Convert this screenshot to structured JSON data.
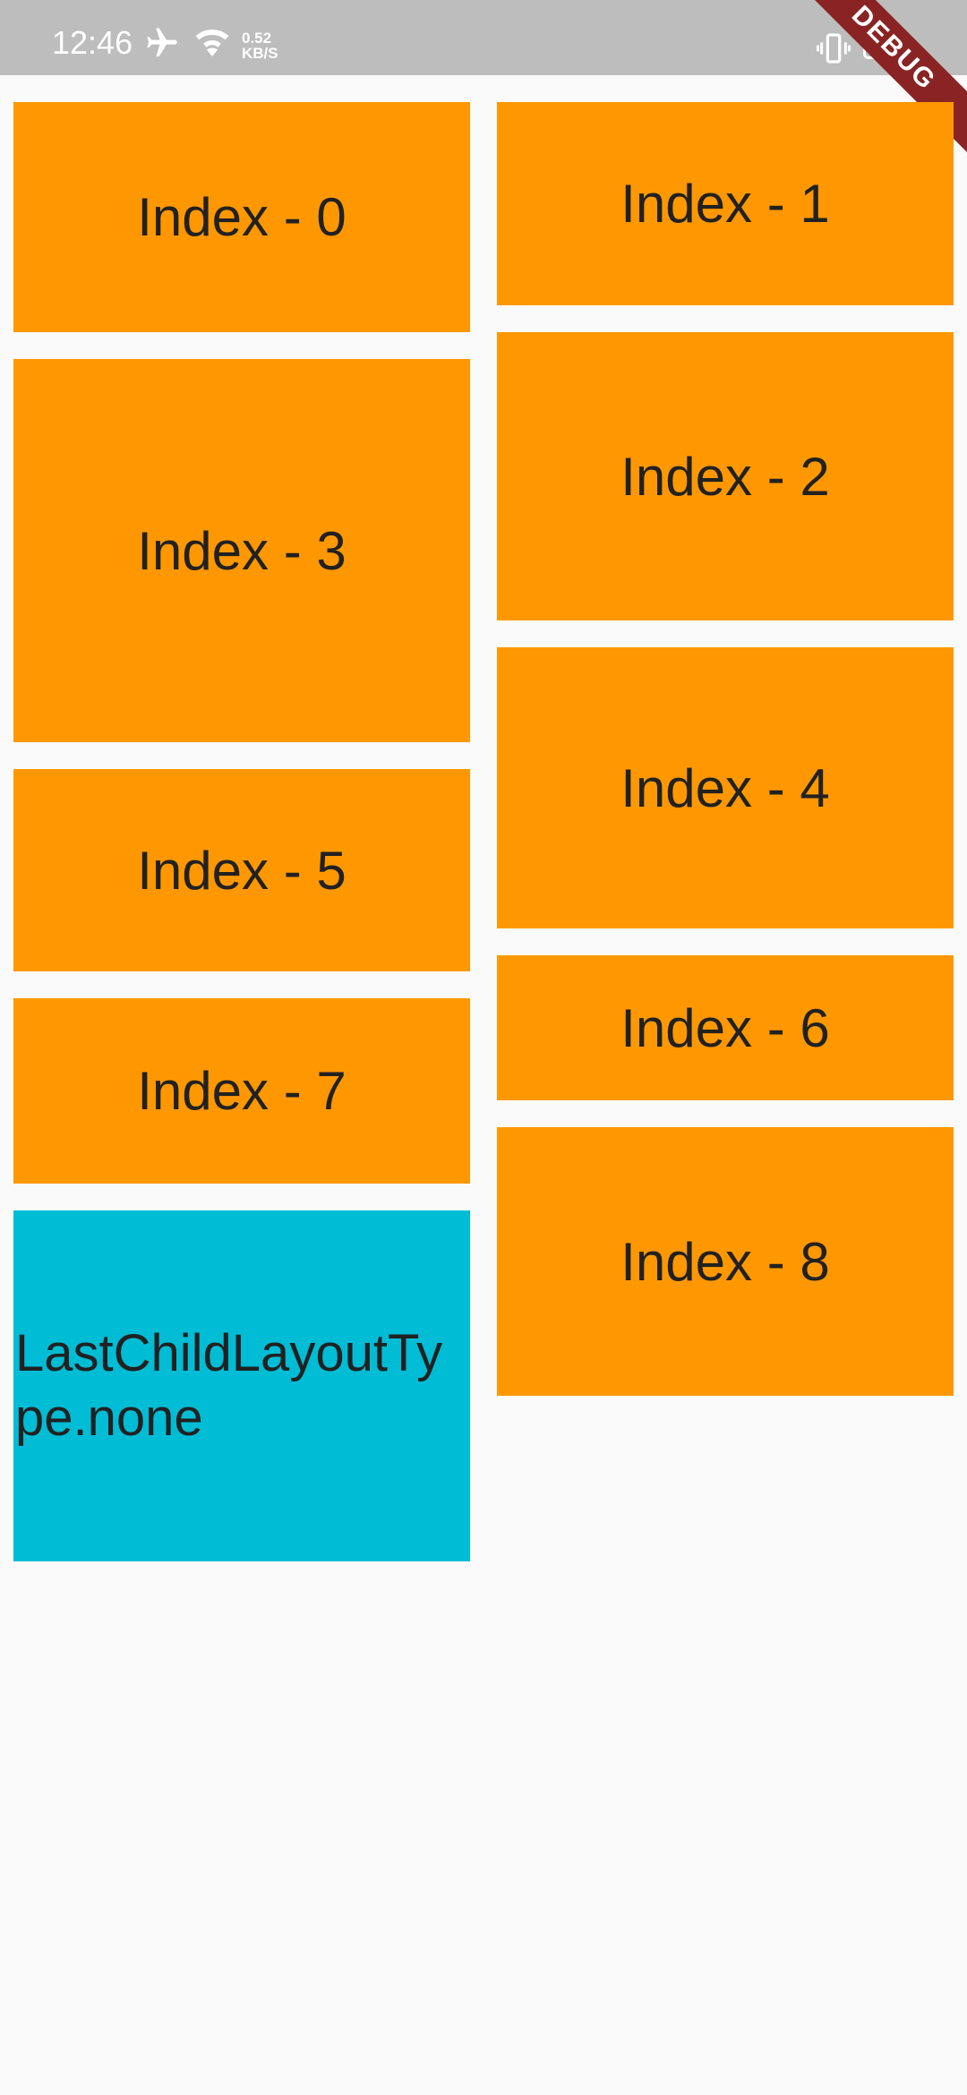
{
  "status_bar": {
    "time": "12:46",
    "speed_value": "0.52",
    "speed_unit": "KB/S",
    "battery": "100",
    "icons": [
      "airplane-mode-icon",
      "wifi-icon",
      "vibrate-icon",
      "battery-icon"
    ]
  },
  "debug_banner": "DEBUG",
  "colors": {
    "tile": "#ff9800",
    "last_tile": "#00bcd4",
    "background": "#fafafa",
    "status_bar": "#bdbdbd",
    "banner": "#8a2424"
  },
  "tiles": [
    "Index - 0",
    "Index - 1",
    "Index - 2",
    "Index - 3",
    "Index - 4",
    "Index - 5",
    "Index - 6",
    "Index - 7",
    "Index - 8"
  ],
  "last_child_label": "LastChildLayoutType.none"
}
